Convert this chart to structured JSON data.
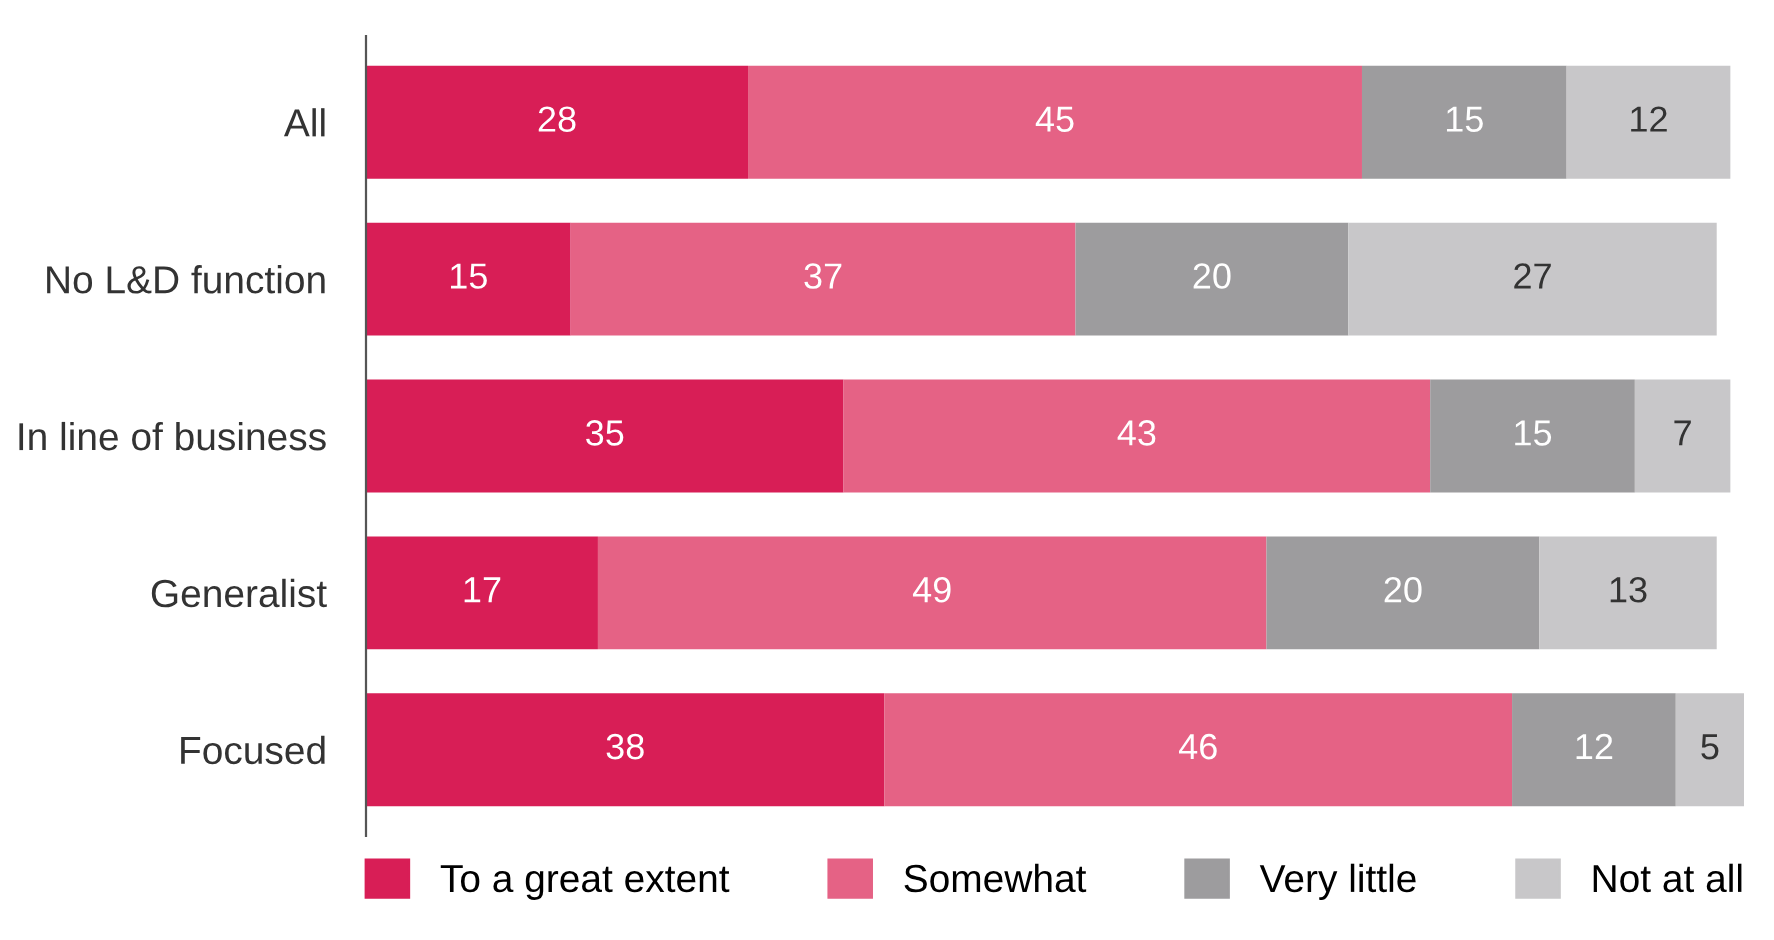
{
  "chart_data": {
    "type": "bar",
    "orientation": "horizontal",
    "stacked": true,
    "data_labels": true,
    "legend": "bottom",
    "grid": false,
    "tick_labels": "y",
    "xlim": [
      0,
      101
    ],
    "categories": [
      "All",
      "No L&D function",
      "In line of business",
      "Generalist",
      "Focused"
    ],
    "series": [
      {
        "name": "To a great extent",
        "color": "#d81e56",
        "values": [
          28,
          15,
          35,
          17,
          38
        ]
      },
      {
        "name": "Somewhat",
        "color": "#e56285",
        "values": [
          45,
          37,
          43,
          49,
          46
        ]
      },
      {
        "name": "Very little",
        "color": "#9d9c9e",
        "values": [
          15,
          20,
          15,
          20,
          12
        ]
      },
      {
        "name": "Not at all",
        "color": "#c8c7c9",
        "values": [
          12,
          27,
          7,
          13,
          5
        ]
      }
    ]
  }
}
